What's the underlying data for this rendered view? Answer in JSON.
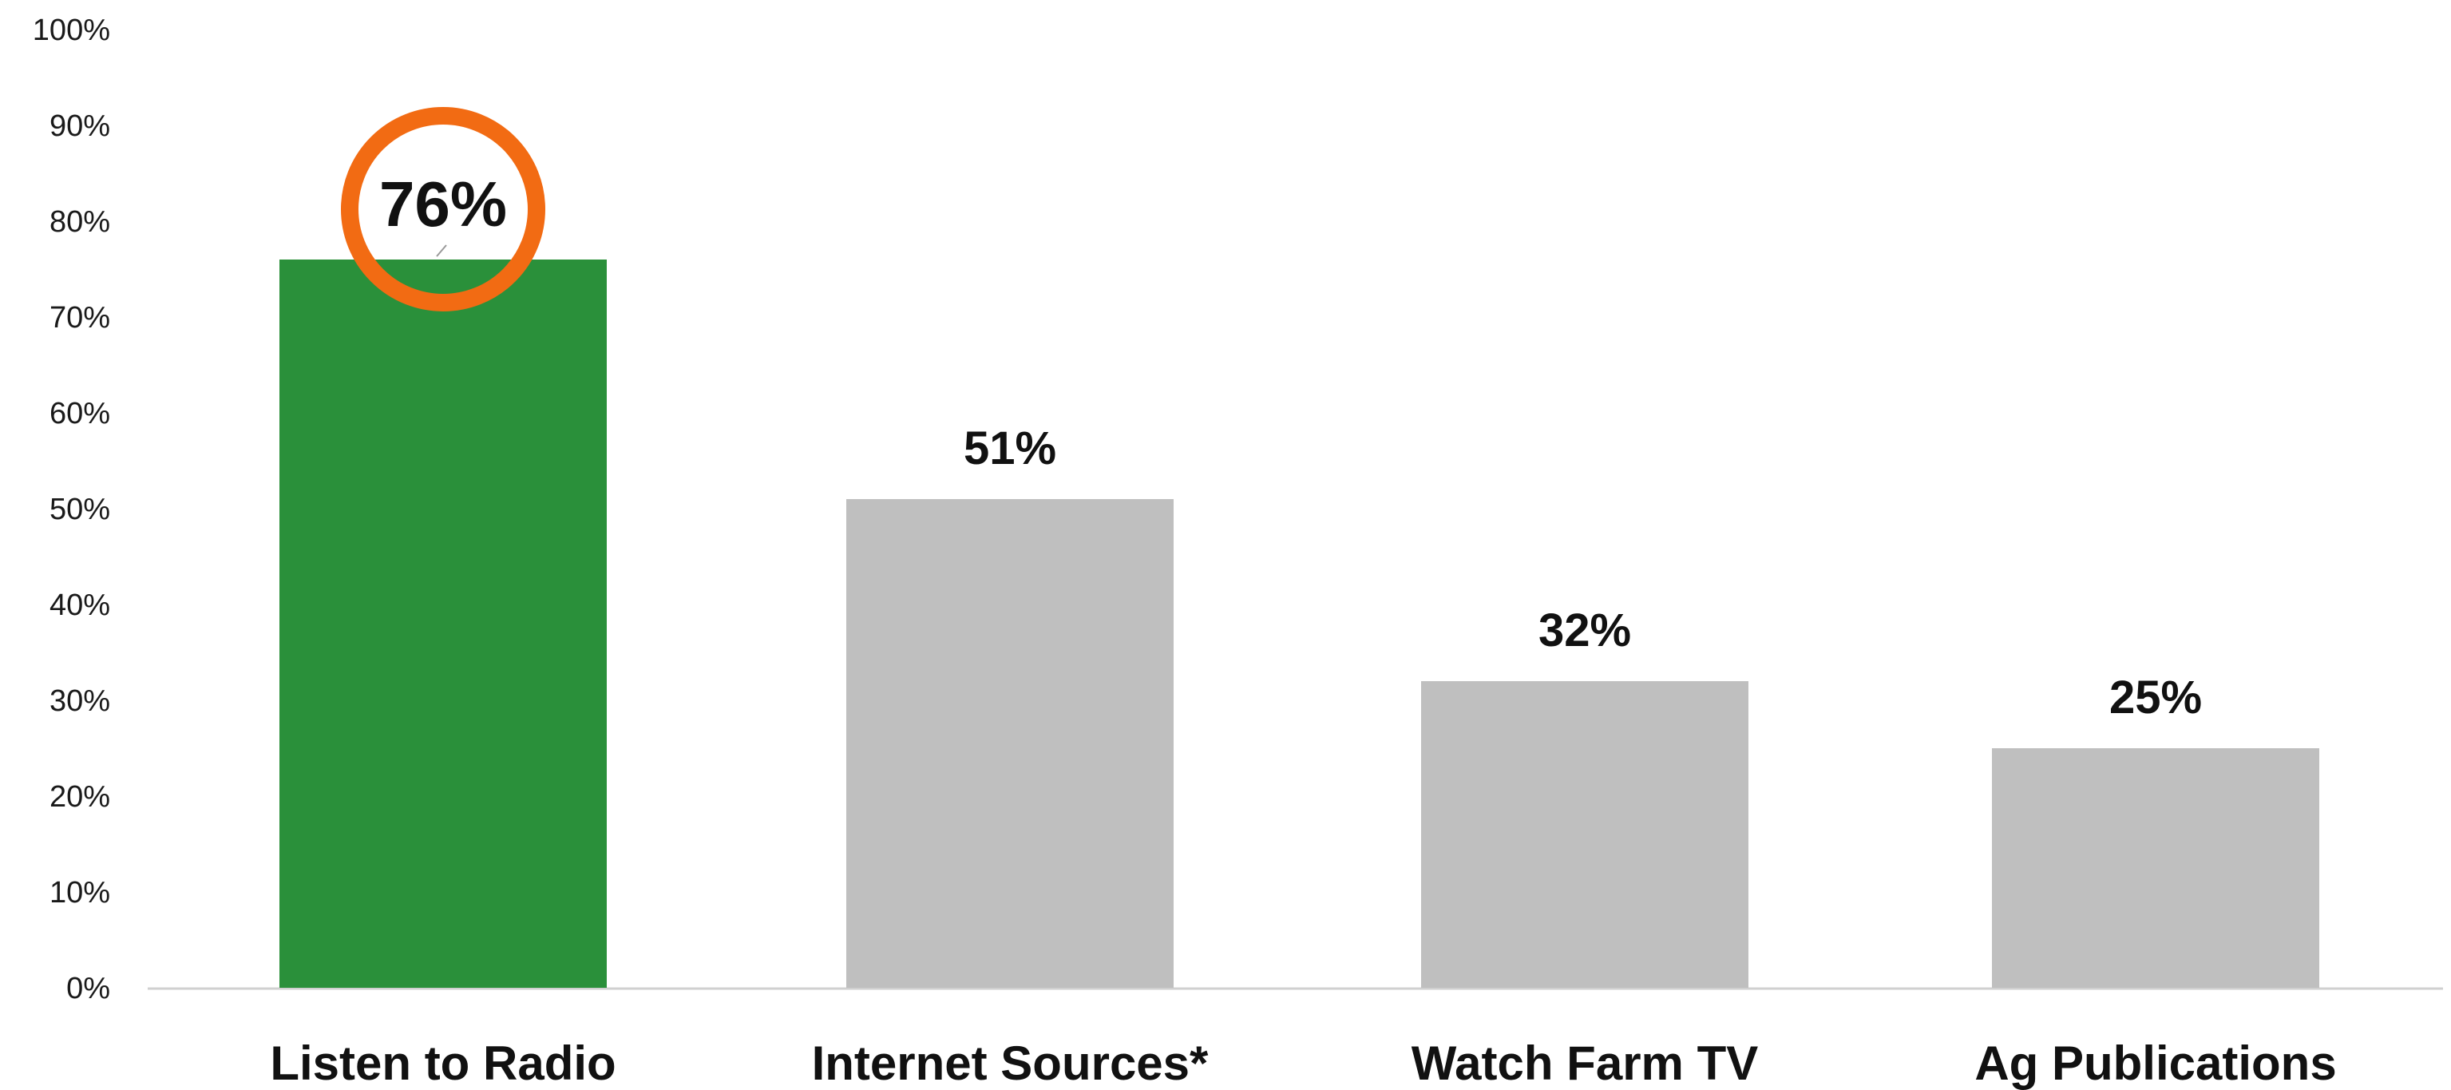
{
  "chart_data": {
    "type": "bar",
    "categories": [
      "Listen to Radio",
      "Internet Sources*",
      "Watch Farm TV",
      "Ag Publications"
    ],
    "values": [
      76,
      51,
      32,
      25
    ],
    "data_labels": [
      "76%",
      "51%",
      "32%",
      "25%"
    ],
    "y_ticks": [
      "0%",
      "10%",
      "20%",
      "30%",
      "40%",
      "50%",
      "60%",
      "70%",
      "80%",
      "90%",
      "100%"
    ],
    "ylim": [
      0,
      100
    ],
    "grid": false,
    "legend": "none",
    "highlight_index": 0,
    "colors": {
      "highlight_bar": "#2a903a",
      "bar": "#bfbfbf",
      "circle": "#f26b13",
      "axis": "#d0d0d0"
    }
  }
}
